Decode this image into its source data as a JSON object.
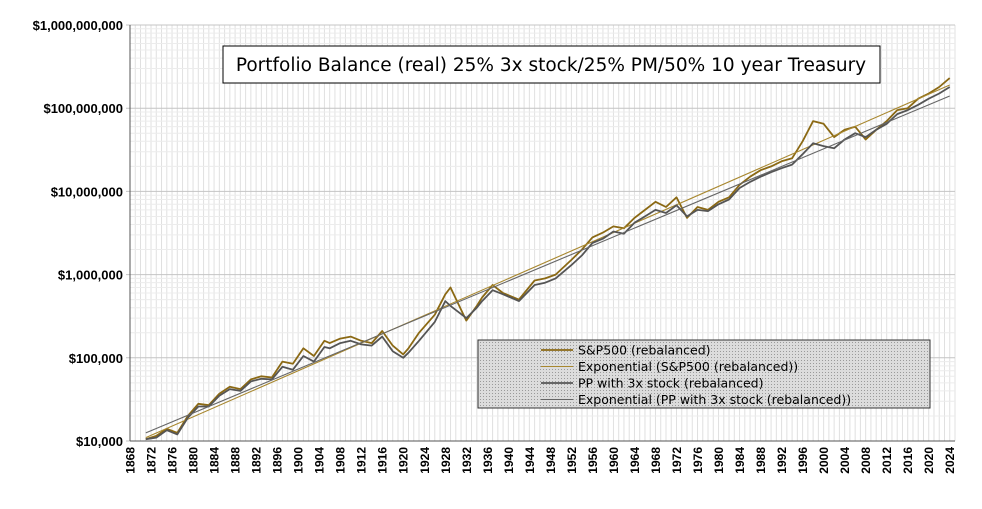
{
  "chart_data": {
    "type": "line",
    "title": "Portfolio Balance (real) 25% 3x stock/25% PM/50% 10 year Treasury",
    "xlabel": "",
    "ylabel": "",
    "yscale": "log",
    "ylim": [
      10000,
      1000000000
    ],
    "xlim": [
      1868,
      2025
    ],
    "grid": true,
    "legend_position": "bottom-right",
    "y_tick_values": [
      10000,
      100000,
      1000000,
      10000000,
      100000000,
      1000000000
    ],
    "y_tick_labels": [
      "$10,000",
      "$100,000",
      "$1,000,000",
      "$10,000,000",
      "$100,000,000",
      "$1,000,000,000"
    ],
    "x_tick_labels": [
      "1868",
      "1872",
      "1876",
      "1880",
      "1884",
      "1888",
      "1892",
      "1896",
      "1900",
      "1904",
      "1908",
      "1912",
      "1916",
      "1920",
      "1924",
      "1928",
      "1932",
      "1936",
      "1940",
      "1944",
      "1948",
      "1952",
      "1956",
      "1960",
      "1964",
      "1968",
      "1972",
      "1976",
      "1980",
      "1984",
      "1988",
      "1992",
      "1996",
      "2000",
      "2004",
      "2008",
      "2012",
      "2016",
      "2020",
      "2024"
    ],
    "series": [
      {
        "name": "S&P500 (rebalanced)",
        "color": "#8b6914",
        "x": [
          1871,
          1873,
          1875,
          1877,
          1879,
          1881,
          1883,
          1885,
          1887,
          1889,
          1891,
          1893,
          1895,
          1897,
          1899,
          1901,
          1903,
          1905,
          1906,
          1908,
          1910,
          1912,
          1914,
          1916,
          1918,
          1920,
          1921,
          1923,
          1926,
          1928,
          1929,
          1932,
          1934,
          1935,
          1937,
          1939,
          1942,
          1945,
          1947,
          1949,
          1952,
          1954,
          1956,
          1958,
          1960,
          1962,
          1964,
          1966,
          1968,
          1970,
          1972,
          1974,
          1976,
          1978,
          1980,
          1982,
          1984,
          1986,
          1988,
          1990,
          1992,
          1994,
          1996,
          1998,
          2000,
          2002,
          2004,
          2006,
          2008,
          2010,
          2012,
          2014,
          2016,
          2018,
          2020,
          2022,
          2024
        ],
        "values": [
          10500,
          11500,
          14000,
          12500,
          20000,
          28000,
          27000,
          37000,
          45000,
          42000,
          55000,
          60000,
          58000,
          90000,
          85000,
          130000,
          105000,
          160000,
          150000,
          170000,
          180000,
          160000,
          150000,
          210000,
          140000,
          110000,
          130000,
          200000,
          330000,
          580000,
          700000,
          280000,
          420000,
          530000,
          750000,
          600000,
          500000,
          850000,
          900000,
          1000000,
          1500000,
          2000000,
          2800000,
          3200000,
          3800000,
          3600000,
          4800000,
          6000000,
          7500000,
          6500000,
          8500000,
          4800000,
          6500000,
          6000000,
          7500000,
          8500000,
          12000000,
          15000000,
          18000000,
          20000000,
          23000000,
          25000000,
          40000000,
          70000000,
          65000000,
          45000000,
          55000000,
          60000000,
          42000000,
          55000000,
          70000000,
          95000000,
          100000000,
          130000000,
          150000000,
          180000000,
          230000000
        ]
      },
      {
        "name": "Exponential (S&P500 (rebalanced))",
        "color": "#a8872e",
        "x": [
          1871,
          2024
        ],
        "values": [
          11000,
          190000000
        ]
      },
      {
        "name": "PP with 3x stock (rebalanced)",
        "color": "#555555",
        "x": [
          1871,
          1873,
          1875,
          1877,
          1879,
          1881,
          1883,
          1885,
          1887,
          1889,
          1891,
          1893,
          1895,
          1897,
          1899,
          1901,
          1903,
          1905,
          1906,
          1908,
          1910,
          1912,
          1914,
          1916,
          1918,
          1920,
          1921,
          1923,
          1926,
          1928,
          1929,
          1932,
          1934,
          1935,
          1937,
          1939,
          1942,
          1945,
          1947,
          1949,
          1952,
          1954,
          1956,
          1958,
          1960,
          1962,
          1964,
          1966,
          1968,
          1970,
          1972,
          1974,
          1976,
          1978,
          1980,
          1982,
          1984,
          1986,
          1988,
          1990,
          1992,
          1994,
          1996,
          1998,
          2000,
          2002,
          2004,
          2006,
          2008,
          2010,
          2012,
          2014,
          2016,
          2018,
          2020,
          2022,
          2024
        ],
        "values": [
          10500,
          11000,
          13500,
          12000,
          19000,
          26000,
          26000,
          35000,
          42000,
          40000,
          52000,
          56000,
          55000,
          78000,
          72000,
          105000,
          90000,
          135000,
          130000,
          150000,
          160000,
          145000,
          140000,
          180000,
          120000,
          100000,
          115000,
          160000,
          270000,
          480000,
          420000,
          300000,
          400000,
          480000,
          650000,
          580000,
          480000,
          750000,
          800000,
          900000,
          1300000,
          1700000,
          2400000,
          2700000,
          3300000,
          3100000,
          4200000,
          5000000,
          6000000,
          5500000,
          6800000,
          5000000,
          6000000,
          5800000,
          7000000,
          8000000,
          11000000,
          13000000,
          15000000,
          17000000,
          19000000,
          21000000,
          28000000,
          38000000,
          35000000,
          33000000,
          42000000,
          50000000,
          45000000,
          55000000,
          65000000,
          85000000,
          95000000,
          110000000,
          130000000,
          150000000,
          180000000
        ]
      },
      {
        "name": "Exponential (PP with 3x stock (rebalanced))",
        "color": "#666666",
        "x": [
          1871,
          2024
        ],
        "values": [
          12500,
          140000000
        ]
      }
    ]
  }
}
